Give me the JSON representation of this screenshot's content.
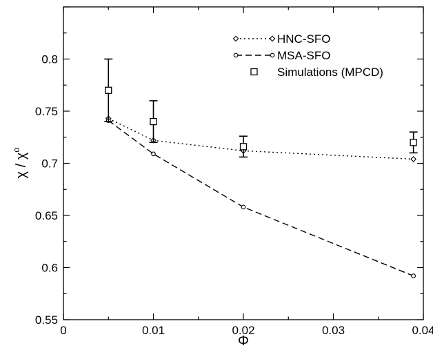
{
  "chart_data": {
    "type": "line",
    "title": "",
    "xlabel": "Φ",
    "ylabel": "χ / χ",
    "ylabel_superscript": "o",
    "xlim": [
      0,
      0.04
    ],
    "ylim": [
      0.55,
      0.85
    ],
    "xticks": [
      0,
      0.01,
      0.02,
      0.03,
      0.04
    ],
    "xtick_labels": [
      "0",
      "0.01",
      "0.02",
      "0.03",
      "0.04"
    ],
    "yticks": [
      0.55,
      0.6,
      0.65,
      0.7,
      0.75,
      0.8
    ],
    "ytick_labels": [
      "0.55",
      "0.6",
      "0.65",
      "0.7",
      "0.75",
      "0.8"
    ],
    "grid": false,
    "legend_position": "top-right",
    "series": [
      {
        "name": "HNC-SFO",
        "line_style": "dotted",
        "marker": "diamond",
        "x": [
          0.005,
          0.01,
          0.02,
          0.0389
        ],
        "y": [
          0.743,
          0.722,
          0.712,
          0.704
        ]
      },
      {
        "name": "MSA-SFO",
        "line_style": "dashed",
        "marker": "circle",
        "x": [
          0.005,
          0.01,
          0.02,
          0.0389
        ],
        "y": [
          0.741,
          0.709,
          0.658,
          0.592
        ]
      },
      {
        "name": "Simulations (MPCD)",
        "line_style": "none",
        "marker": "square",
        "x": [
          0.005,
          0.01,
          0.02,
          0.0389
        ],
        "y": [
          0.77,
          0.74,
          0.716,
          0.72
        ],
        "y_err": [
          0.03,
          0.02,
          0.01,
          0.01
        ]
      }
    ]
  }
}
